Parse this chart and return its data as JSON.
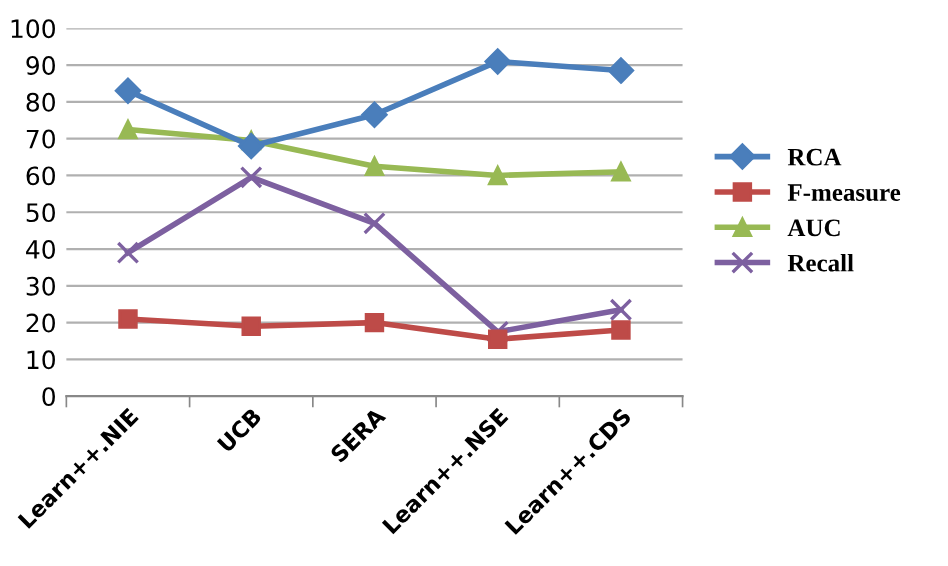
{
  "chart_data": {
    "type": "line",
    "categories": [
      "Learn++.NIE",
      "UCB",
      "SERA",
      "Learn++.NSE",
      "Learn++.CDS"
    ],
    "series": [
      {
        "name": "RCA",
        "color": "#4a7ebb",
        "marker": "diamond",
        "values": [
          83,
          68,
          76.5,
          91,
          88.5
        ]
      },
      {
        "name": "F-measure",
        "color": "#be4b48",
        "marker": "square",
        "values": [
          21,
          19,
          20,
          15.5,
          18
        ]
      },
      {
        "name": "AUC",
        "color": "#98b954",
        "marker": "triangle",
        "values": [
          72.5,
          69.5,
          62.5,
          60,
          61
        ]
      },
      {
        "name": "Recall",
        "color": "#7d60a0",
        "marker": "cross",
        "values": [
          39,
          59.5,
          47,
          17.5,
          23.5
        ]
      }
    ],
    "ylim": [
      0,
      100
    ],
    "yticks": [
      0,
      10,
      20,
      30,
      40,
      50,
      60,
      70,
      80,
      90,
      100
    ],
    "grid": "y",
    "legend": "right"
  }
}
